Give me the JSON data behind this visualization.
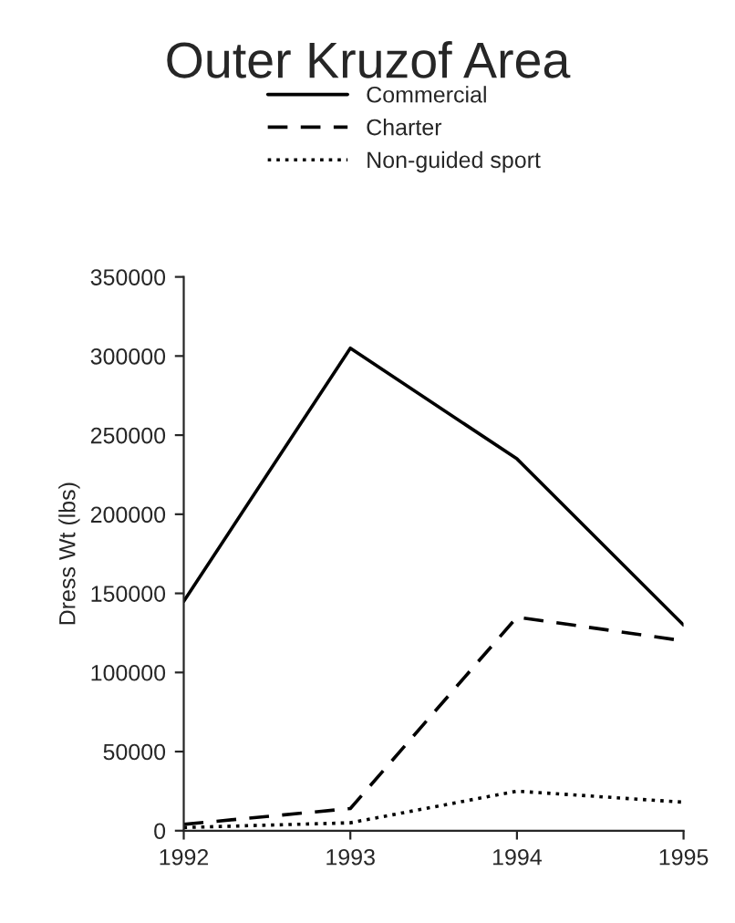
{
  "chart_data": {
    "type": "line",
    "title": "Outer Kruzof Area",
    "ylabel": "Dress Wt (lbs)",
    "x": [
      1992,
      1993,
      1994,
      1995
    ],
    "xlim": [
      1992,
      1995
    ],
    "xticks": [
      1992,
      1993,
      1994,
      1995
    ],
    "ylim": [
      0,
      350000
    ],
    "yticks": [
      0,
      50000,
      100000,
      150000,
      200000,
      250000,
      300000,
      350000
    ],
    "grid": false,
    "legend": "top",
    "marker": "none",
    "series": [
      {
        "name": "Commercial",
        "color": "#000000",
        "line_style": "solid",
        "values": [
          145000,
          305000,
          235000,
          130000
        ]
      },
      {
        "name": "Charter",
        "color": "#000000",
        "line_style": "dashed",
        "values": [
          4000,
          14000,
          135000,
          120000
        ]
      },
      {
        "name": "Non-guided sport",
        "color": "#000000",
        "line_style": "dotted",
        "values": [
          2000,
          5000,
          25000,
          18000
        ]
      }
    ]
  }
}
